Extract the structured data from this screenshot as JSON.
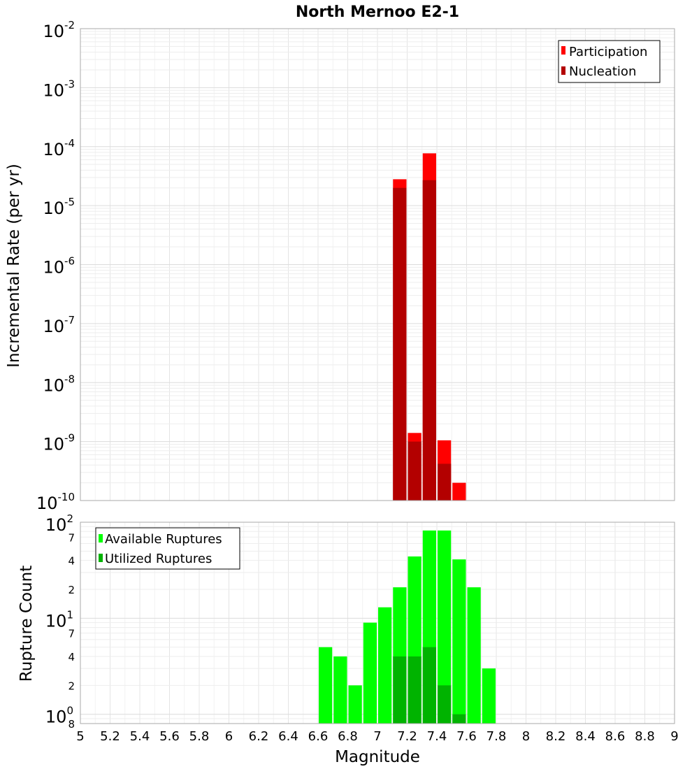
{
  "chart_data": [
    {
      "type": "bar",
      "title": "North Mernoo E2-1",
      "xlabel": "Magnitude",
      "ylabel": "Incremental Rate (per yr)",
      "yscale": "log",
      "ylim": [
        1e-10,
        0.01
      ],
      "xlim": [
        5,
        9
      ],
      "bin_width": 0.1,
      "legend_position": "top-right",
      "series": [
        {
          "name": "Participation",
          "color": "#ff0000",
          "x": [
            7.15,
            7.25,
            7.35,
            7.45,
            7.55
          ],
          "values": [
            2.8e-05,
            1.4e-09,
            7.7e-05,
            1.05e-09,
            2e-10
          ]
        },
        {
          "name": "Nucleation",
          "color": "#b30000",
          "x": [
            7.15,
            7.25,
            7.35,
            7.45
          ],
          "values": [
            2e-05,
            1e-09,
            2.7e-05,
            4.2e-10
          ]
        }
      ]
    },
    {
      "type": "bar",
      "title": "",
      "xlabel": "Magnitude",
      "ylabel": "Rupture Count",
      "yscale": "log",
      "ylim": [
        0.8,
        100
      ],
      "xlim": [
        5,
        9
      ],
      "bin_width": 0.1,
      "legend_position": "top-left",
      "series": [
        {
          "name": "Available Ruptures",
          "color": "#00ff00",
          "x": [
            6.65,
            6.75,
            6.85,
            6.95,
            7.05,
            7.15,
            7.25,
            7.35,
            7.45,
            7.55,
            7.65,
            7.75
          ],
          "values": [
            5,
            4,
            2,
            9,
            13,
            21,
            44,
            82,
            82,
            41,
            21,
            3
          ]
        },
        {
          "name": "Utilized Ruptures",
          "color": "#00b300",
          "x": [
            7.15,
            7.25,
            7.35,
            7.45,
            7.55
          ],
          "values": [
            4,
            4,
            5,
            2,
            1
          ]
        }
      ]
    }
  ],
  "axes": {
    "x_ticks": [
      "5",
      "5.2",
      "5.4",
      "5.6",
      "5.8",
      "6",
      "6.2",
      "6.4",
      "6.6",
      "6.8",
      "7",
      "7.2",
      "7.4",
      "7.6",
      "7.8",
      "8",
      "8.2",
      "8.4",
      "8.6",
      "8.8",
      "9"
    ],
    "top_y_ticks": [
      {
        "base": "10",
        "exp": "-2"
      },
      {
        "base": "10",
        "exp": "-3"
      },
      {
        "base": "10",
        "exp": "-4"
      },
      {
        "base": "10",
        "exp": "-5"
      },
      {
        "base": "10",
        "exp": "-6"
      },
      {
        "base": "10",
        "exp": "-7"
      },
      {
        "base": "10",
        "exp": "-8"
      },
      {
        "base": "10",
        "exp": "-9"
      },
      {
        "base": "10",
        "exp": "-10"
      }
    ],
    "bottom_y_major": [
      {
        "base": "10",
        "exp": "2"
      },
      {
        "base": "10",
        "exp": "1"
      },
      {
        "base": "10",
        "exp": "0"
      }
    ],
    "bottom_y_minor": [
      "7",
      "4",
      "2",
      "7",
      "4",
      "2",
      "8"
    ]
  }
}
